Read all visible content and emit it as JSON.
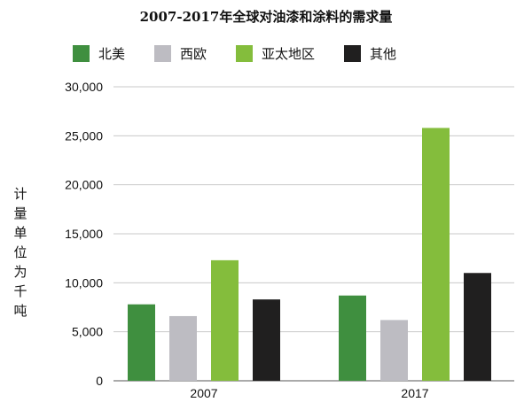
{
  "chart_data": {
    "type": "bar",
    "title": "2007-2017年全球对油漆和涂料的需求量",
    "ylabel": "计量单位为千吨",
    "xlabel": "",
    "categories": [
      "2007",
      "2017"
    ],
    "series": [
      {
        "name": "北美",
        "color": "#3f8f3f",
        "values": [
          7800,
          8700
        ]
      },
      {
        "name": "西欧",
        "color": "#bdbcc2",
        "values": [
          6600,
          6200
        ]
      },
      {
        "name": "亚太地区",
        "color": "#84bd3c",
        "values": [
          12300,
          25800
        ]
      },
      {
        "name": "其他",
        "color": "#201f1f",
        "values": [
          8300,
          11000
        ]
      }
    ],
    "ylim": [
      0,
      30000
    ],
    "yticks": [
      0,
      5000,
      10000,
      15000,
      20000,
      25000,
      30000
    ],
    "ytick_labels": [
      "0",
      "5,000",
      "10,000",
      "15,000",
      "20,000",
      "25,000",
      "30,000"
    ],
    "grid": true,
    "legend_position": "top"
  }
}
